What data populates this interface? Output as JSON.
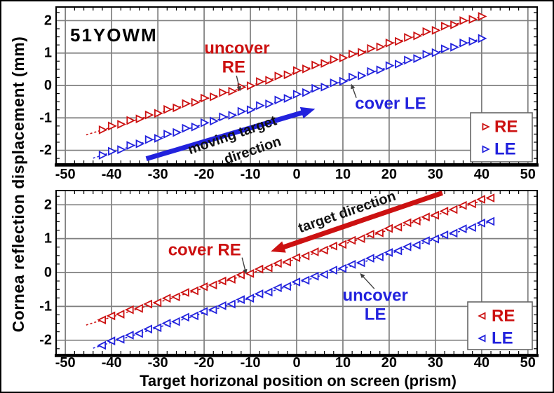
{
  "figure": {
    "subject": "51YOWM",
    "xlabel": "Target horizonal position on screen (prism)",
    "ylabel": "Cornea reflection displacement (mm)",
    "colors": {
      "re": "#CC1111",
      "le": "#2222DD",
      "grid": "#7F7F7F",
      "axis": "#000000",
      "pointer": "#3F3F3F",
      "annotation_text": "#111111",
      "background": "#FFFFFF",
      "legend_border": "#666666"
    }
  },
  "chart_data": [
    {
      "type": "scatter",
      "position": "top",
      "xlim": [
        -52,
        52
      ],
      "ylim": [
        -2.42,
        2.42
      ],
      "x_major_ticks": [
        -50,
        -40,
        -30,
        -20,
        -10,
        0,
        10,
        20,
        30,
        40,
        50
      ],
      "x_minor_step": 2,
      "y_major_ticks": [
        2,
        1,
        0,
        -1,
        -2
      ],
      "y_minor_step": 0.25,
      "grid": true,
      "series": [
        {
          "name": "RE",
          "color": "re",
          "marker": "triangle-right",
          "x": [
            -42,
            -40,
            -38,
            -36,
            -34,
            -32,
            -30,
            -28,
            -26,
            -24,
            -22,
            -20,
            -18,
            -16,
            -14,
            -12,
            -10,
            -8,
            -6,
            -4,
            -2,
            0,
            2,
            4,
            6,
            8,
            10,
            12,
            14,
            16,
            18,
            20,
            22,
            24,
            26,
            28,
            30,
            32,
            34,
            36,
            38,
            40
          ],
          "y": [
            -1.37,
            -1.25,
            -1.2,
            -1.08,
            -1.03,
            -0.91,
            -0.86,
            -0.74,
            -0.69,
            -0.56,
            -0.52,
            -0.39,
            -0.35,
            -0.22,
            -0.18,
            -0.05,
            -0.01,
            0.12,
            0.16,
            0.29,
            0.33,
            0.46,
            0.51,
            0.63,
            0.68,
            0.8,
            0.85,
            0.97,
            1.02,
            1.14,
            1.19,
            1.31,
            1.36,
            1.48,
            1.53,
            1.66,
            1.7,
            1.83,
            1.87,
            2.0,
            2.04,
            2.13
          ],
          "fit": {
            "slope": 0.0427,
            "intercept": 0.42,
            "x_start": -45.5,
            "x_end": 40.5
          }
        },
        {
          "name": "LE",
          "color": "le",
          "marker": "triangle-right",
          "x": [
            -42,
            -40,
            -38,
            -36,
            -34,
            -32,
            -30,
            -28,
            -26,
            -24,
            -22,
            -20,
            -18,
            -16,
            -14,
            -12,
            -10,
            -8,
            -6,
            -4,
            -2,
            0,
            2,
            4,
            6,
            8,
            10,
            12,
            14,
            16,
            18,
            20,
            22,
            24,
            26,
            28,
            30,
            32,
            34,
            36,
            38,
            40
          ],
          "y": [
            -2.15,
            -2.03,
            -1.98,
            -1.85,
            -1.8,
            -1.67,
            -1.63,
            -1.5,
            -1.45,
            -1.32,
            -1.28,
            -1.15,
            -1.1,
            -0.97,
            -0.92,
            -0.8,
            -0.75,
            -0.62,
            -0.57,
            -0.45,
            -0.4,
            -0.27,
            -0.22,
            -0.09,
            -0.05,
            0.08,
            0.13,
            0.26,
            0.3,
            0.43,
            0.48,
            0.61,
            0.66,
            0.78,
            0.83,
            0.96,
            1.01,
            1.13,
            1.18,
            1.31,
            1.36,
            1.45
          ],
          "fit": {
            "slope": 0.0439,
            "intercept": -0.31,
            "x_start": -44,
            "x_end": 40.5
          }
        }
      ],
      "labels": [
        {
          "text": "uncover",
          "color": "re",
          "x": -12.9,
          "y": 1.15,
          "size": 24
        },
        {
          "text": "RE",
          "color": "re",
          "x": -13.6,
          "y": 0.56,
          "size": 24
        },
        {
          "text": "cover LE",
          "color": "le",
          "x": 20.3,
          "y": -0.56,
          "size": 24
        }
      ],
      "pointers": [
        {
          "from": [
            -13.0,
            0.3
          ],
          "to": [
            -12.2,
            -0.18
          ]
        },
        {
          "from": [
            12.9,
            -0.38
          ],
          "to": [
            11.8,
            0.05
          ]
        }
      ],
      "direction_arrow": {
        "color": "le",
        "from": [
          -32.5,
          -2.26
        ],
        "to": [
          4,
          -0.72
        ],
        "labels": [
          {
            "text": "moving target",
            "x": -13.9,
            "y": -1.54,
            "rotation": -19,
            "size": 20
          },
          {
            "text": "direction",
            "x": -9.5,
            "y": -2.01,
            "rotation": -19,
            "size": 20
          }
        ]
      },
      "legend": {
        "items": [
          {
            "label": "RE",
            "color": "re",
            "marker": "triangle-right"
          },
          {
            "label": "LE",
            "color": "le",
            "marker": "triangle-right"
          }
        ]
      }
    },
    {
      "type": "scatter",
      "position": "bottom",
      "xlim": [
        -52,
        52
      ],
      "ylim": [
        -2.42,
        2.42
      ],
      "x_major_ticks": [
        -50,
        -40,
        -30,
        -20,
        -10,
        0,
        10,
        20,
        30,
        40,
        50
      ],
      "x_minor_step": 2,
      "y_major_ticks": [
        2,
        1,
        0,
        -1,
        -2
      ],
      "y_minor_step": 0.25,
      "grid": true,
      "series": [
        {
          "name": "RE",
          "color": "re",
          "marker": "triangle-left",
          "x": [
            -42,
            -40,
            -38,
            -36,
            -34,
            -32,
            -30,
            -28,
            -26,
            -24,
            -22,
            -20,
            -18,
            -16,
            -14,
            -12,
            -10,
            -8,
            -6,
            -4,
            -2,
            0,
            2,
            4,
            6,
            8,
            10,
            12,
            14,
            16,
            18,
            20,
            22,
            24,
            26,
            28,
            30,
            32,
            34,
            36,
            38,
            40,
            42
          ],
          "y": [
            -1.4,
            -1.28,
            -1.23,
            -1.1,
            -1.06,
            -0.93,
            -0.89,
            -0.76,
            -0.72,
            -0.59,
            -0.54,
            -0.42,
            -0.37,
            -0.25,
            -0.2,
            -0.07,
            -0.03,
            0.1,
            0.14,
            0.27,
            0.31,
            0.44,
            0.49,
            0.61,
            0.66,
            0.78,
            0.83,
            0.95,
            1.0,
            1.13,
            1.17,
            1.3,
            1.34,
            1.47,
            1.52,
            1.64,
            1.69,
            1.81,
            1.86,
            1.98,
            2.03,
            2.16,
            2.2
          ],
          "fit": {
            "slope": 0.0429,
            "intercept": 0.4,
            "x_start": -45.5,
            "x_end": 42.5
          }
        },
        {
          "name": "LE",
          "color": "le",
          "marker": "triangle-left",
          "x": [
            -42,
            -40,
            -38,
            -36,
            -34,
            -32,
            -30,
            -28,
            -26,
            -24,
            -22,
            -20,
            -18,
            -16,
            -14,
            -12,
            -10,
            -8,
            -6,
            -4,
            -2,
            0,
            2,
            4,
            6,
            8,
            10,
            12,
            14,
            16,
            18,
            20,
            22,
            24,
            26,
            28,
            30,
            32,
            34,
            36,
            38,
            40,
            42
          ],
          "y": [
            -2.15,
            -2.02,
            -1.97,
            -1.85,
            -1.8,
            -1.67,
            -1.63,
            -1.5,
            -1.45,
            -1.32,
            -1.28,
            -1.15,
            -1.1,
            -0.98,
            -0.93,
            -0.8,
            -0.76,
            -0.63,
            -0.58,
            -0.45,
            -0.41,
            -0.28,
            -0.23,
            -0.11,
            -0.06,
            0.07,
            0.12,
            0.24,
            0.29,
            0.42,
            0.46,
            0.59,
            0.64,
            0.76,
            0.81,
            0.94,
            0.99,
            1.11,
            1.16,
            1.29,
            1.33,
            1.46,
            1.51
          ],
          "fit": {
            "slope": 0.0435,
            "intercept": -0.32,
            "x_start": -44,
            "x_end": 42.5
          }
        }
      ],
      "labels": [
        {
          "text": "cover RE",
          "color": "re",
          "x": -19.9,
          "y": 0.66,
          "size": 24
        },
        {
          "text": "uncover",
          "color": "le",
          "x": 17.0,
          "y": -0.68,
          "size": 24
        },
        {
          "text": "LE",
          "color": "le",
          "x": 17.0,
          "y": -1.24,
          "size": 24
        }
      ],
      "pointers": [
        {
          "from": [
            -11.8,
            0.44
          ],
          "to": [
            -10.9,
            -0.05
          ]
        },
        {
          "from": [
            16.8,
            -0.48
          ],
          "to": [
            13.7,
            -0.02
          ]
        }
      ],
      "direction_arrow": {
        "color": "re",
        "from": [
          31.5,
          2.35
        ],
        "to": [
          -5.6,
          0.62
        ],
        "labels": [
          {
            "text": "target direction",
            "x": 10.9,
            "y": 1.78,
            "rotation": -19,
            "size": 20
          }
        ]
      },
      "legend": {
        "items": [
          {
            "label": "RE",
            "color": "re",
            "marker": "triangle-left"
          },
          {
            "label": "LE",
            "color": "le",
            "marker": "triangle-left"
          }
        ]
      }
    }
  ]
}
